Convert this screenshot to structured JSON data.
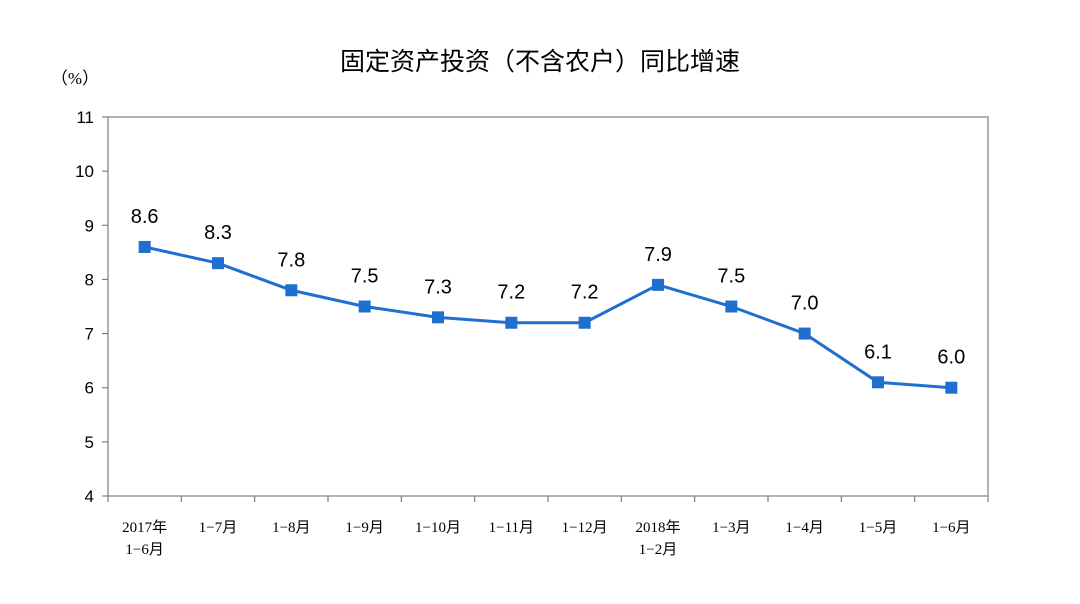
{
  "chart_data": {
    "type": "line",
    "title": "固定资产投资（不含农户）同比增速",
    "ylabel": "（%）",
    "ylim": [
      4,
      11
    ],
    "yticks": [
      4,
      5,
      6,
      7,
      8,
      9,
      10,
      11
    ],
    "categories": [
      [
        "2017年",
        "1−6月"
      ],
      [
        "1−7月"
      ],
      [
        "1−8月"
      ],
      [
        "1−9月"
      ],
      [
        "1−10月"
      ],
      [
        "1−11月"
      ],
      [
        "1−12月"
      ],
      [
        "2018年",
        "1−2月"
      ],
      [
        "1−3月"
      ],
      [
        "1−4月"
      ],
      [
        "1−5月"
      ],
      [
        "1−6月"
      ]
    ],
    "series": [
      {
        "values": [
          8.6,
          8.3,
          7.8,
          7.5,
          7.3,
          7.2,
          7.2,
          7.9,
          7.5,
          7.0,
          6.1,
          6.0
        ],
        "labels": [
          "8.6",
          "8.3",
          "7.8",
          "7.5",
          "7.3",
          "7.2",
          "7.2",
          "7.9",
          "7.5",
          "7.0",
          "6.1",
          "6.0"
        ],
        "color": "#1f6fd0"
      }
    ],
    "grid": false,
    "legend": "none"
  }
}
